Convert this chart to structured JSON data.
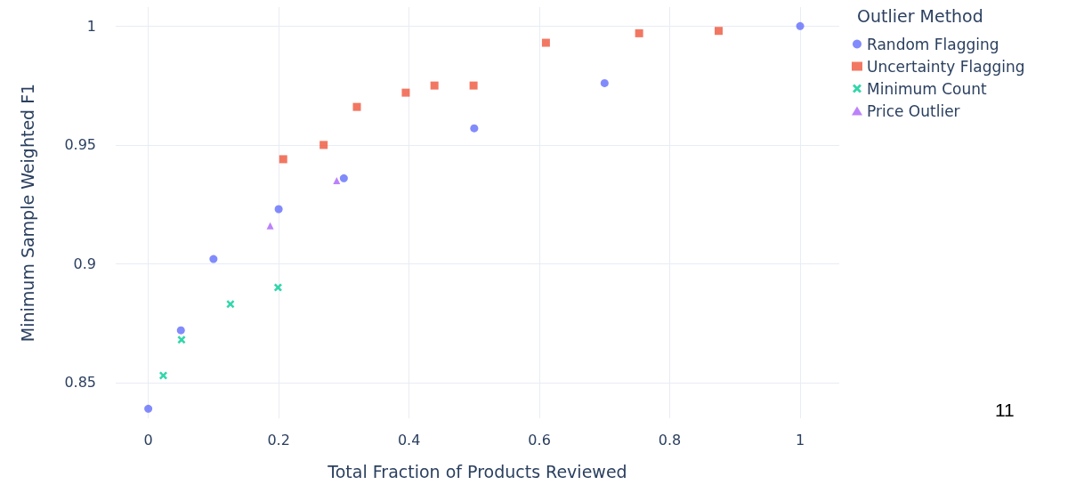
{
  "chart_data": {
    "type": "scatter",
    "xlabel": "Total Fraction of Products Reviewed",
    "ylabel": "Minimum Sample Weighted F1",
    "legend_title": "Outlier Method",
    "legend": "top right",
    "grid": true,
    "xlim": [
      -0.05,
      1.06
    ],
    "xticks": [
      0,
      0.2,
      0.4,
      0.6,
      0.8,
      1
    ],
    "ylim": [
      0.835,
      1.008
    ],
    "yticks": [
      0.85,
      0.9,
      0.95,
      1
    ],
    "annotations": [
      "11"
    ],
    "series": [
      {
        "name": "Random Flagging",
        "color": "#636efa",
        "marker": "circle",
        "x": [
          0,
          0.05,
          0.1,
          0.2,
          0.3,
          0.5,
          0.7,
          1
        ],
        "values": [
          0.839,
          0.872,
          0.902,
          0.923,
          0.936,
          0.957,
          0.976,
          1
        ]
      },
      {
        "name": "Uncertainty Flagging",
        "color": "#ef553b",
        "marker": "square",
        "x": [
          0.207,
          0.269,
          0.32,
          0.395,
          0.439,
          0.499,
          0.61,
          0.753,
          0.875
        ],
        "values": [
          0.944,
          0.95,
          0.966,
          0.972,
          0.975,
          0.975,
          0.993,
          0.997,
          0.998
        ]
      },
      {
        "name": "Minimum Count",
        "color": "#00cc96",
        "marker": "cross",
        "x": [
          0.023,
          0.051,
          0.126,
          0.199
        ],
        "values": [
          0.853,
          0.868,
          0.883,
          0.89
        ]
      },
      {
        "name": "Price Outlier",
        "color": "#ab63fa",
        "marker": "triangle",
        "x": [
          0.187,
          0.289
        ],
        "values": [
          0.916,
          0.935
        ]
      }
    ]
  }
}
